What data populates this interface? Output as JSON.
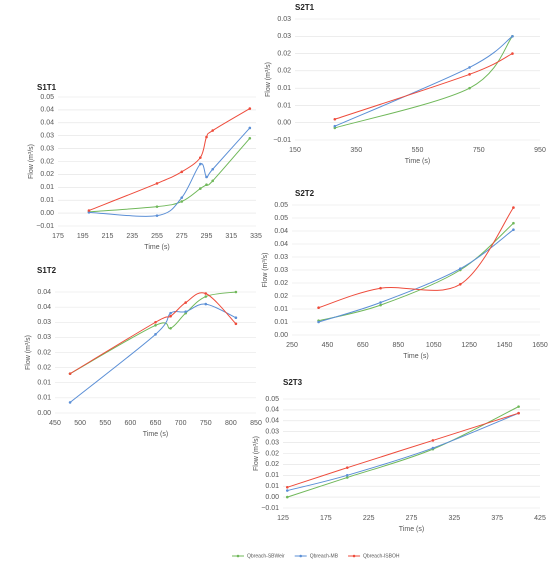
{
  "legend": [
    {
      "name": "Qbreach-SBWeir",
      "color": "#70b85a"
    },
    {
      "name": "Qbreach-MB",
      "color": "#5b8fd6"
    },
    {
      "name": "Qbreach-ISBOH",
      "color": "#ee4b3b"
    }
  ],
  "chart_data": [
    {
      "type": "line",
      "title": "S1T1",
      "x_label": "Time (s)",
      "y_label": "Flow (m³/s)",
      "grid": true,
      "x": [
        200,
        255,
        275,
        290,
        295,
        300,
        330
      ],
      "series": [
        {
          "values": [
            0.0005,
            0.0025,
            0.0045,
            0.0095,
            0.011,
            0.0125,
            0.029
          ]
        },
        {
          "values": [
            0.0003,
            -0.001,
            0.006,
            0.019,
            0.014,
            0.017,
            0.033
          ]
        },
        {
          "values": [
            0.001,
            0.0115,
            0.016,
            0.0215,
            0.0295,
            0.032,
            0.0405
          ]
        }
      ],
      "xlim": [
        175,
        335
      ],
      "xticks": [
        175,
        195,
        215,
        235,
        255,
        275,
        295,
        315,
        335
      ],
      "ylim": [
        -0.005,
        0.045
      ],
      "yticks": [
        {
          "value": -0.005,
          "label": "−0.01"
        },
        {
          "value": 0,
          "label": "0.00"
        },
        {
          "value": 0.005,
          "label": "0.01"
        },
        {
          "value": 0.01,
          "label": "0.01"
        },
        {
          "value": 0.015,
          "label": "0.02"
        },
        {
          "value": 0.02,
          "label": "0.02"
        },
        {
          "value": 0.025,
          "label": "0.03"
        },
        {
          "value": 0.03,
          "label": "0.03"
        },
        {
          "value": 0.035,
          "label": "0.04"
        },
        {
          "value": 0.04,
          "label": "0.04"
        },
        {
          "value": 0.045,
          "label": "0.05"
        }
      ]
    },
    {
      "type": "line",
      "title": "S1T2",
      "x_label": "Time (s)",
      "y_label": "Flow (m³/s)",
      "grid": true,
      "x": [
        480,
        650,
        680,
        710,
        750,
        810
      ],
      "series": [
        {
          "values": [
            0.013,
            0.029,
            0.028,
            0.033,
            0.0385,
            0.04
          ]
        },
        {
          "values": [
            0.0035,
            0.026,
            0.033,
            0.0335,
            0.036,
            0.0315
          ]
        },
        {
          "values": [
            0.013,
            0.03,
            0.032,
            0.0365,
            0.0395,
            0.0295
          ]
        }
      ],
      "xlim": [
        450,
        850
      ],
      "xticks": [
        450,
        500,
        550,
        600,
        650,
        700,
        750,
        800,
        850
      ],
      "ylim": [
        0,
        0.04
      ],
      "yticks": [
        {
          "value": 0,
          "label": "0.00"
        },
        {
          "value": 0.005,
          "label": "0.01"
        },
        {
          "value": 0.01,
          "label": "0.01"
        },
        {
          "value": 0.015,
          "label": "0.02"
        },
        {
          "value": 0.02,
          "label": "0.02"
        },
        {
          "value": 0.025,
          "label": "0.03"
        },
        {
          "value": 0.03,
          "label": "0.03"
        },
        {
          "value": 0.035,
          "label": "0.04"
        },
        {
          "value": 0.04,
          "label": "0.04"
        }
      ]
    },
    {
      "type": "line",
      "title": "S2T1",
      "x_label": "Time (s)",
      "y_label": "Flow (m³/s)",
      "grid": true,
      "x": [
        280,
        720,
        860
      ],
      "series": [
        {
          "values": [
            -0.0015,
            0.01,
            0.025
          ]
        },
        {
          "values": [
            -0.001,
            0.016,
            0.025
          ]
        },
        {
          "values": [
            0.001,
            0.014,
            0.02
          ]
        }
      ],
      "xlim": [
        150,
        950
      ],
      "xticks": [
        150,
        350,
        550,
        750,
        950
      ],
      "ylim": [
        -0.005,
        0.03
      ],
      "yticks": [
        {
          "value": -0.005,
          "label": "−0.01"
        },
        {
          "value": 0,
          "label": "0.00"
        },
        {
          "value": 0.005,
          "label": "0.01"
        },
        {
          "value": 0.01,
          "label": "0.01"
        },
        {
          "value": 0.015,
          "label": "0.02"
        },
        {
          "value": 0.02,
          "label": "0.02"
        },
        {
          "value": 0.025,
          "label": "0.03"
        },
        {
          "value": 0.03,
          "label": "0.03"
        }
      ]
    },
    {
      "type": "line",
      "title": "S2T2",
      "x_label": "Time (s)",
      "y_label": "Flow (m³/s)",
      "grid": true,
      "x": [
        400,
        750,
        1200,
        1500
      ],
      "series": [
        {
          "values": [
            0.0055,
            0.0115,
            0.025,
            0.043
          ]
        },
        {
          "values": [
            0.005,
            0.0125,
            0.0255,
            0.0405
          ]
        },
        {
          "values": [
            0.0105,
            0.018,
            0.0195,
            0.049
          ]
        }
      ],
      "xlim": [
        250,
        1650
      ],
      "xticks": [
        250,
        450,
        650,
        850,
        1050,
        1250,
        1450,
        1650
      ],
      "ylim": [
        0,
        0.05
      ],
      "yticks": [
        {
          "value": 0,
          "label": "0.00"
        },
        {
          "value": 0.005,
          "label": "0.01"
        },
        {
          "value": 0.01,
          "label": "0.01"
        },
        {
          "value": 0.015,
          "label": "0.02"
        },
        {
          "value": 0.02,
          "label": "0.02"
        },
        {
          "value": 0.025,
          "label": "0.03"
        },
        {
          "value": 0.03,
          "label": "0.03"
        },
        {
          "value": 0.035,
          "label": "0.04"
        },
        {
          "value": 0.04,
          "label": "0.04"
        },
        {
          "value": 0.045,
          "label": "0.05"
        },
        {
          "value": 0.05,
          "label": "0.05"
        }
      ]
    },
    {
      "type": "line",
      "title": "S2T3",
      "x_label": "Time (s)",
      "y_label": "Flow (m³/s)",
      "grid": true,
      "x": [
        130,
        200,
        300,
        400
      ],
      "series": [
        {
          "values": [
            0,
            0.009,
            0.022,
            0.0415
          ]
        },
        {
          "values": [
            0.003,
            0.01,
            0.0225,
            0.0385
          ]
        },
        {
          "values": [
            0.0045,
            0.0135,
            0.026,
            0.0385
          ]
        }
      ],
      "xlim": [
        125,
        425
      ],
      "xticks": [
        125,
        175,
        225,
        275,
        325,
        375,
        425
      ],
      "ylim": [
        -0.005,
        0.045
      ],
      "yticks": [
        {
          "value": -0.005,
          "label": "−0.01"
        },
        {
          "value": 0,
          "label": "0.00"
        },
        {
          "value": 0.005,
          "label": "0.01"
        },
        {
          "value": 0.01,
          "label": "0.01"
        },
        {
          "value": 0.015,
          "label": "0.02"
        },
        {
          "value": 0.02,
          "label": "0.02"
        },
        {
          "value": 0.025,
          "label": "0.03"
        },
        {
          "value": 0.03,
          "label": "0.03"
        },
        {
          "value": 0.035,
          "label": "0.04"
        },
        {
          "value": 0.04,
          "label": "0.04"
        },
        {
          "value": 0.045,
          "label": "0.05"
        }
      ]
    }
  ]
}
